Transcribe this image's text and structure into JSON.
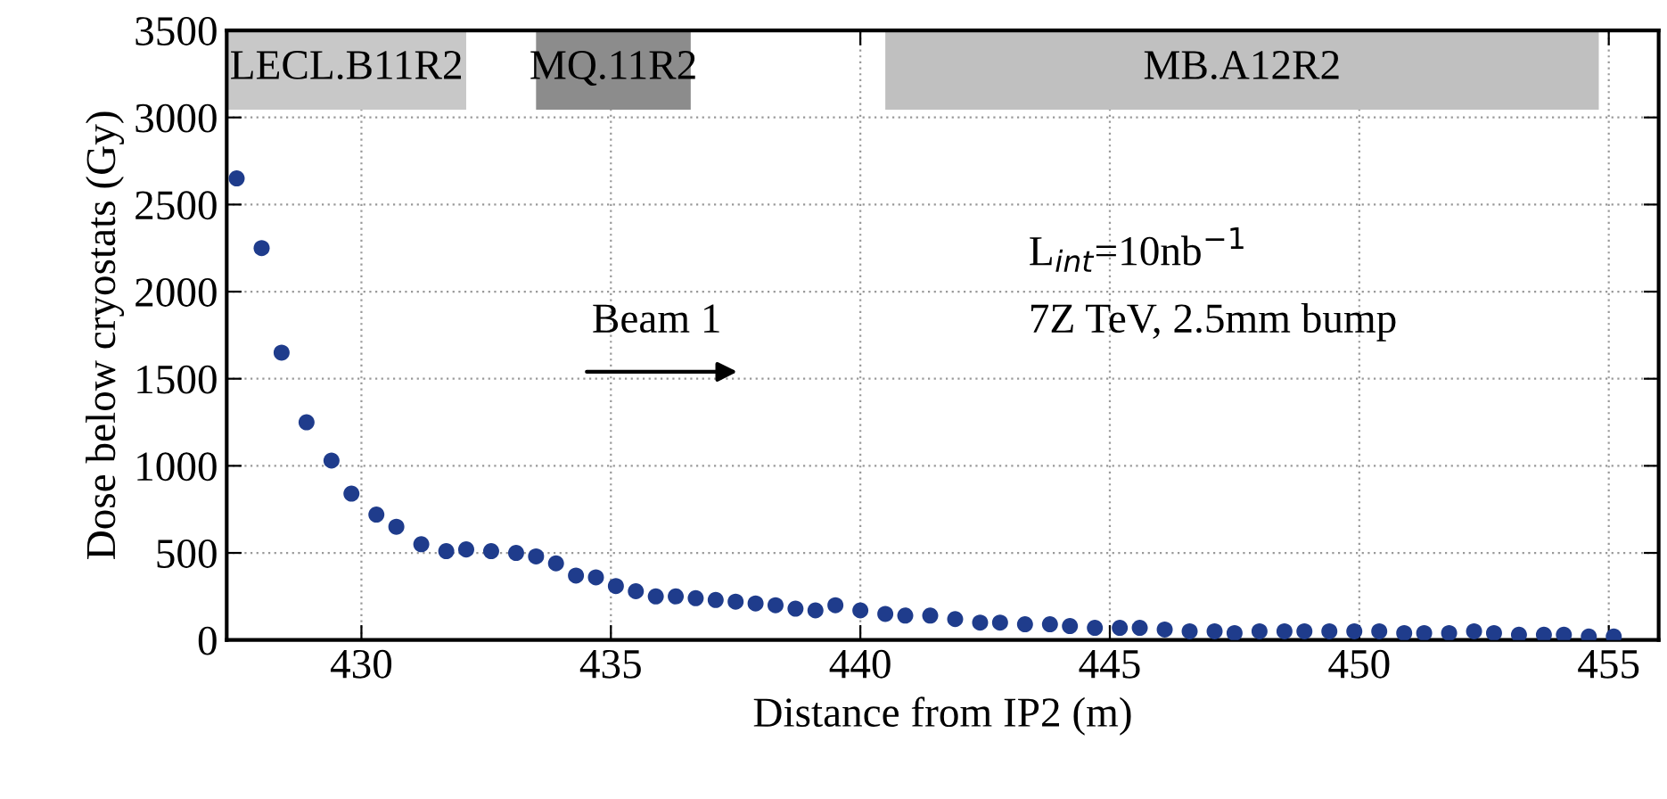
{
  "chart_data": {
    "type": "scatter",
    "xlabel": "Distance from IP2 (m)",
    "ylabel": "Dose below cryostats (Gy)",
    "x": [
      427.5,
      428.0,
      428.4,
      428.9,
      429.4,
      429.8,
      430.3,
      430.7,
      431.2,
      431.7,
      432.1,
      432.6,
      433.1,
      433.5,
      433.9,
      434.3,
      434.7,
      435.1,
      435.5,
      435.9,
      436.3,
      436.7,
      437.1,
      437.5,
      437.9,
      438.3,
      438.7,
      439.1,
      439.5,
      440.0,
      440.5,
      440.9,
      441.4,
      441.9,
      442.4,
      442.8,
      443.3,
      443.8,
      444.2,
      444.7,
      445.2,
      445.6,
      446.1,
      446.6,
      447.1,
      447.5,
      448.0,
      448.5,
      448.9,
      449.4,
      449.9,
      450.4,
      450.9,
      451.3,
      451.8,
      452.3,
      452.7,
      453.2,
      453.7,
      454.1,
      454.6,
      455.1
    ],
    "series": [
      {
        "color": "#1f3c8c",
        "values": [
          2650,
          2250,
          1650,
          1250,
          1030,
          840,
          720,
          650,
          550,
          510,
          520,
          510,
          500,
          480,
          440,
          370,
          360,
          310,
          280,
          250,
          250,
          240,
          230,
          220,
          210,
          200,
          180,
          170,
          200,
          170,
          150,
          140,
          140,
          120,
          100,
          100,
          90,
          90,
          80,
          70,
          70,
          70,
          60,
          50,
          50,
          40,
          50,
          50,
          50,
          50,
          50,
          50,
          40,
          40,
          40,
          50,
          40,
          30,
          30,
          30,
          20,
          20
        ]
      }
    ],
    "marker": "circle",
    "xlim": [
      427.3,
      456
    ],
    "ylim": [
      0,
      3500
    ],
    "xticks": [
      430,
      435,
      440,
      445,
      450,
      455
    ],
    "yticks": [
      0,
      500,
      1000,
      1500,
      2000,
      2500,
      3000,
      3500
    ],
    "grid": true,
    "bands": [
      {
        "axis": "x",
        "from": 427.3,
        "to": 432.1,
        "label": "LECL.B11R2",
        "color": "#c8c8c8"
      },
      {
        "axis": "x",
        "from": 433.5,
        "to": 436.6,
        "label": "MQ.11R2",
        "color": "#8c8c8c"
      },
      {
        "axis": "x",
        "from": 440.5,
        "to": 454.8,
        "label": "MB.A12R2",
        "color": "#c0c0c0"
      }
    ],
    "annotations": [
      "Beam 1",
      "L$_{int}$=10nb$^{−1}$",
      "7Z TeV, 2.5mm bump"
    ]
  }
}
